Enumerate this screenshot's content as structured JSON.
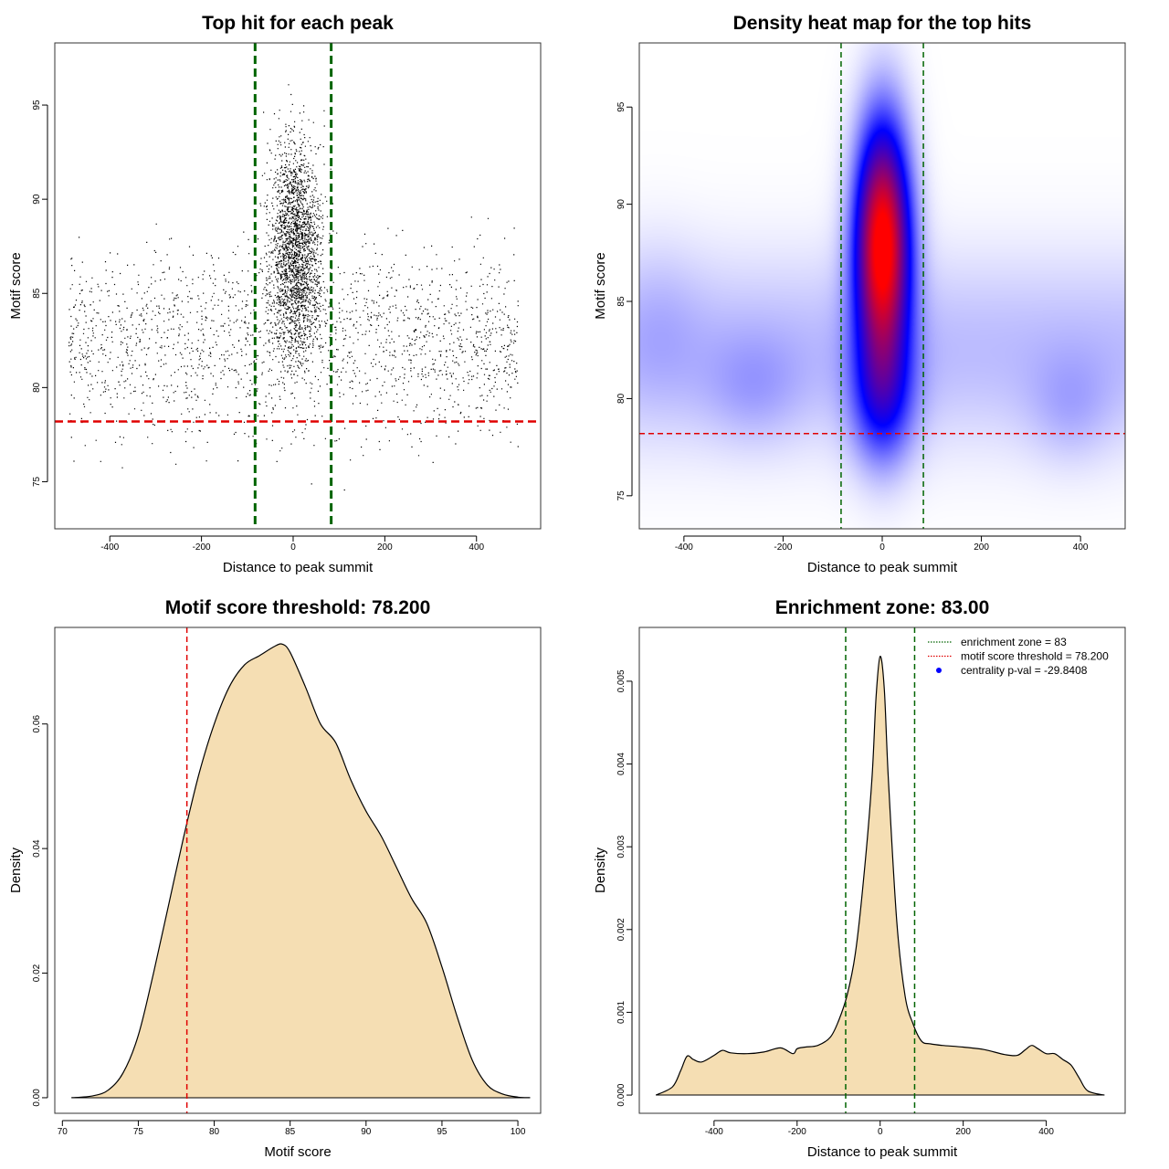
{
  "chart_data": [
    {
      "type": "scatter",
      "title": "Top hit for each peak",
      "xlabel": "Distance to peak summit",
      "ylabel": "Motif score",
      "xlim": [
        -520,
        540
      ],
      "ylim": [
        72.5,
        98.3
      ],
      "xticks": [
        -400,
        -200,
        0,
        200,
        400
      ],
      "yticks": [
        75,
        80,
        85,
        90,
        95
      ],
      "point_color": "#000000",
      "n_points_approx": 4200,
      "point_distribution": {
        "background": {
          "x_range": [
            -490,
            490
          ],
          "score_mean": 82.5,
          "score_sd": 3.5,
          "score_range": [
            73.3,
            94
          ]
        },
        "central_cluster": {
          "x_mean": 5,
          "x_sd": 40,
          "score_mean": 87.5,
          "score_sd": 4,
          "score_range": [
            72.8,
            97.9
          ]
        }
      },
      "vlines": [
        -83,
        83
      ],
      "vline_color": "#006400",
      "hline": 78.2,
      "hline_color": "#e00000"
    },
    {
      "type": "heatmap",
      "title": "Density heat map for the top hits",
      "xlabel": "Distance to peak summit",
      "ylabel": "Motif score",
      "xlim": [
        -490,
        490
      ],
      "ylim": [
        73.3,
        98.3
      ],
      "xticks": [
        -400,
        -200,
        0,
        200,
        400
      ],
      "yticks": [
        75,
        80,
        85,
        90,
        95
      ],
      "colormap": [
        "#ffffff",
        "#0000ff",
        "#ff0000"
      ],
      "density_peak": {
        "x": 0,
        "score": 88
      },
      "vlines": [
        -83,
        83
      ],
      "vline_color": "#006400",
      "hline": 78.2,
      "hline_color": "#e00000"
    },
    {
      "type": "area",
      "title": "Motif score threshold: 78.200",
      "xlabel": "Motif score",
      "ylabel": "Density",
      "xlim": [
        69.5,
        101.5
      ],
      "ylim": [
        -0.0025,
        0.0755
      ],
      "xticks": [
        70,
        75,
        80,
        85,
        90,
        95,
        100
      ],
      "yticks": [
        0.0,
        0.02,
        0.04,
        0.06
      ],
      "ytick_labels": [
        "0.00",
        "0.02",
        "0.04",
        "0.06"
      ],
      "fill_color": "#f5deb3",
      "x": [
        70.6,
        72,
        73,
        74,
        75,
        76,
        77,
        78,
        79,
        80,
        81,
        82,
        83,
        84,
        84.5,
        85,
        86,
        87,
        88,
        89,
        90,
        91,
        92,
        93,
        94,
        95,
        96,
        97,
        98,
        99,
        100,
        100.8
      ],
      "y": [
        0.0,
        0.0003,
        0.0012,
        0.004,
        0.01,
        0.02,
        0.031,
        0.042,
        0.052,
        0.06,
        0.066,
        0.0695,
        0.071,
        0.0725,
        0.0728,
        0.0715,
        0.066,
        0.06,
        0.057,
        0.051,
        0.046,
        0.042,
        0.037,
        0.032,
        0.028,
        0.021,
        0.013,
        0.006,
        0.002,
        0.0006,
        0.0001,
        0.0
      ],
      "vline": 78.2,
      "vline_color": "#e00000"
    },
    {
      "type": "area",
      "title": "Enrichment zone: 83.00",
      "xlabel": "Distance to peak summit",
      "ylabel": "Density",
      "xlim": [
        -580,
        590
      ],
      "ylim": [
        -0.00022,
        0.00565
      ],
      "xticks": [
        -400,
        -200,
        0,
        200,
        400
      ],
      "yticks": [
        0.0,
        0.001,
        0.002,
        0.003,
        0.004,
        0.005
      ],
      "ytick_labels": [
        "0.000",
        "0.001",
        "0.002",
        "0.003",
        "0.004",
        "0.005"
      ],
      "fill_color": "#f5deb3",
      "x": [
        -540,
        -500,
        -480,
        -465,
        -450,
        -430,
        -400,
        -380,
        -360,
        -320,
        -280,
        -240,
        -210,
        -200,
        -180,
        -150,
        -120,
        -100,
        -80,
        -60,
        -40,
        -20,
        -10,
        0,
        10,
        20,
        40,
        60,
        80,
        100,
        120,
        150,
        200,
        250,
        300,
        330,
        350,
        365,
        380,
        400,
        420,
        440,
        460,
        480,
        500,
        540
      ],
      "y": [
        0.0,
        0.0001,
        0.0003,
        0.00047,
        0.00043,
        0.0004,
        0.00048,
        0.00054,
        0.00051,
        0.0005,
        0.00052,
        0.00057,
        0.0005,
        0.00056,
        0.00058,
        0.0006,
        0.0007,
        0.0009,
        0.0012,
        0.0017,
        0.0026,
        0.0038,
        0.0048,
        0.0053,
        0.0049,
        0.0038,
        0.0021,
        0.0012,
        0.00085,
        0.00065,
        0.00062,
        0.0006,
        0.00058,
        0.00055,
        0.00049,
        0.00048,
        0.00055,
        0.0006,
        0.00056,
        0.0005,
        0.0005,
        0.00043,
        0.00036,
        0.0002,
        5e-05,
        0.0
      ],
      "vlines": [
        -83,
        83
      ],
      "vline_color": "#006400",
      "legend": {
        "position": "top-right",
        "entries": [
          {
            "label": "enrichment zone = 83",
            "style": "dotted-line",
            "color": "#006400"
          },
          {
            "label": "motif score threshold = 78.200",
            "style": "dotted-line",
            "color": "#e00000"
          },
          {
            "label": "centrality p-val = -29.8408",
            "style": "point",
            "color": "#0000ff"
          }
        ]
      }
    }
  ]
}
